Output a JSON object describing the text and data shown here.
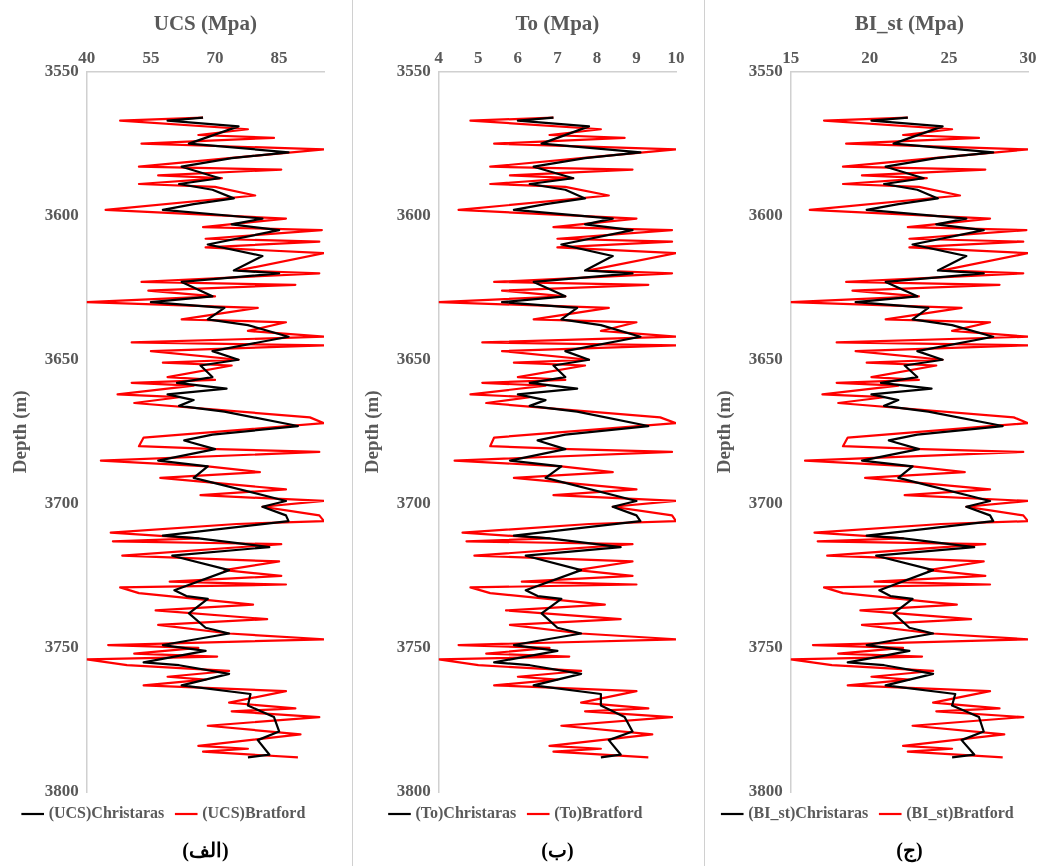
{
  "chart_data": [
    {
      "type": "line",
      "xlabel": "UCS (Mpa)",
      "ylabel": "Depth (m)",
      "xlim": [
        40,
        95.5
      ],
      "xticks": [
        40,
        55,
        70,
        85
      ],
      "ylim": [
        3800,
        3550
      ],
      "yticks": [
        3550,
        3600,
        3650,
        3700,
        3750,
        3800
      ],
      "grid": false,
      "legend": "bottom",
      "marker": "none",
      "line_style": "solid",
      "annotations": [
        "(الف)"
      ],
      "series": [
        {
          "name": "(UCS)Christaras",
          "color": "#000000",
          "x": [
            67.2,
            58.9,
            75.5,
            63.9,
            87.2,
            73.9,
            62.2,
            71.1,
            61.6,
            69.4,
            74.4,
            65.0,
            57.8,
            81.1,
            73.9,
            85.0,
            68.3,
            81.1,
            74.4,
            85.0,
            62.2,
            69.4,
            55.0,
            72.2,
            68.3,
            77.7,
            87.2,
            69.4,
            75.5,
            66.6,
            69.4,
            61.1,
            72.7,
            58.9,
            65.0,
            61.6,
            72.2,
            89.4,
            69.4,
            62.8,
            70.0,
            56.7,
            68.3,
            65.0,
            86.6,
            81.1,
            86.6,
            87.2,
            57.8,
            66.1,
            82.7,
            60.0,
            73.3,
            60.5,
            63.3,
            68.3,
            63.9,
            67.8,
            73.3,
            57.8,
            67.8,
            60.5,
            53.3,
            61.6,
            73.3,
            62.2,
            78.3,
            77.7,
            83.8,
            85.0,
            80.0,
            82.7,
            77.7
          ],
          "values": [
            3566,
            3567,
            3569,
            3575,
            3578,
            3580,
            3583,
            3587,
            3589,
            3591,
            3594,
            3596,
            3598,
            3601,
            3603,
            3605,
            3610,
            3614,
            3619,
            3620,
            3623,
            3628,
            3630,
            3632,
            3636,
            3638,
            3642,
            3647,
            3650,
            3652,
            3656,
            3658,
            3660,
            3662,
            3664,
            3666,
            3668,
            3673,
            3676,
            3678,
            3681,
            3685,
            3687,
            3691,
            3699,
            3701,
            3704,
            3706,
            3711,
            3712,
            3715,
            3718,
            3723,
            3730,
            3732,
            3733,
            3738,
            3743,
            3745,
            3749,
            3751,
            3753,
            3755,
            3756,
            3759,
            3763,
            3766,
            3770,
            3774,
            3779,
            3782,
            3787,
            3788
          ]
        },
        {
          "name": "(UCS)Bratford",
          "color": "#ff0000",
          "x": [
            67.2,
            47.8,
            77.7,
            66.1,
            83.8,
            52.8,
            95.5,
            73.3,
            52.2,
            85.5,
            56.7,
            71.6,
            52.2,
            70.0,
            79.4,
            44.4,
            86.6,
            67.2,
            95.0,
            67.8,
            94.4,
            67.8,
            95.5,
            75.5,
            94.4,
            52.8,
            88.8,
            54.4,
            70.0,
            40,
            80.0,
            62.2,
            86.6,
            77.7,
            95.5,
            50.5,
            95.5,
            55.0,
            75.5,
            57.8,
            73.9,
            58.9,
            70.0,
            50.5,
            65.0,
            47.2,
            61.6,
            51.1,
            92.2,
            95.5,
            53.3,
            52.2,
            70.5,
            94.4,
            43.3,
            68.3,
            80.5,
            57.2,
            86.6,
            66.6,
            95.5,
            81.1,
            94.4,
            95.5,
            75.0,
            45.6,
            66.1,
            46.1,
            85.5,
            48.3,
            85.0,
            72.2,
            85.5,
            59.4,
            86.6,
            47.8,
            52.2,
            78.9,
            56.1,
            82.2,
            56.7,
            73.3,
            95.5,
            45.0,
            66.1,
            51.1,
            70.5,
            40,
            49.4,
            73.3,
            58.9,
            67.8,
            53.3,
            86.6,
            73.3,
            88.8,
            73.9,
            94.4,
            68.3,
            90.0,
            66.1,
            77.7,
            67.2,
            89.4
          ],
          "values": [
            3566,
            3567,
            3570,
            3572,
            3573,
            3575,
            3577,
            3580,
            3583,
            3584,
            3586,
            3587,
            3589,
            3590,
            3593,
            3598,
            3601,
            3604,
            3605,
            3608,
            3609,
            3611,
            3613,
            3619,
            3620,
            3623,
            3624,
            3626,
            3628,
            3630,
            3632,
            3636,
            3637,
            3640,
            3642,
            3644,
            3645,
            3647,
            3650,
            3651,
            3652,
            3656,
            3657,
            3658,
            3659,
            3662,
            3663,
            3665,
            3670,
            3672,
            3677,
            3680,
            3681,
            3682,
            3685,
            3687,
            3689,
            3691,
            3695,
            3697,
            3699,
            3701,
            3704,
            3706,
            3707,
            3710,
            3712,
            3713,
            3714,
            3718,
            3720,
            3723,
            3725,
            3727,
            3728,
            3729,
            3731,
            3735,
            3737,
            3740,
            3742,
            3745,
            3747,
            3749,
            3750,
            3752,
            3753,
            3754,
            3756,
            3758,
            3760,
            3761,
            3763,
            3765,
            3769,
            3771,
            3772,
            3774,
            3777,
            3780,
            3784,
            3785,
            3786,
            3788
          ]
        }
      ]
    },
    {
      "type": "line",
      "xlabel": "To (Mpa)",
      "ylabel": "Depth (m)",
      "xlim": [
        4,
        10
      ],
      "xticks": [
        4,
        5,
        6,
        7,
        8,
        9,
        10
      ],
      "ylim": [
        3800,
        3550
      ],
      "yticks": [
        3550,
        3600,
        3650,
        3700,
        3750,
        3800
      ],
      "grid": false,
      "legend": "bottom",
      "marker": "none",
      "line_style": "solid",
      "annotations": [
        "(ب)"
      ],
      "series": [
        {
          "name": "(To)Christaras",
          "color": "#000000",
          "x": [
            6.9,
            6.0,
            7.8,
            6.6,
            9.1,
            7.7,
            6.4,
            7.4,
            6.3,
            7.2,
            7.7,
            6.7,
            5.9,
            8.4,
            7.7,
            8.9,
            7.1,
            8.4,
            7.7,
            8.9,
            6.4,
            7.2,
            5.6,
            7.5,
            7.1,
            8.1,
            9.1,
            7.2,
            7.8,
            6.9,
            7.2,
            6.3,
            7.5,
            6.0,
            6.7,
            6.3,
            7.5,
            9.3,
            7.2,
            6.5,
            7.2,
            5.8,
            7.1,
            6.7,
            9.0,
            8.4,
            9.0,
            9.1,
            5.9,
            6.8,
            8.6,
            6.2,
            7.6,
            6.2,
            6.5,
            7.1,
            6.6,
            7.0,
            7.6,
            5.9,
            7.0,
            6.2,
            5.4,
            6.3,
            7.6,
            6.4,
            8.1,
            8.1,
            8.7,
            8.9,
            8.3,
            8.6,
            8.1
          ],
          "values": [
            3566,
            3567,
            3569,
            3575,
            3578,
            3580,
            3583,
            3587,
            3589,
            3591,
            3594,
            3596,
            3598,
            3601,
            3603,
            3605,
            3610,
            3614,
            3619,
            3620,
            3623,
            3628,
            3630,
            3632,
            3636,
            3638,
            3642,
            3647,
            3650,
            3652,
            3656,
            3658,
            3660,
            3662,
            3664,
            3666,
            3668,
            3673,
            3676,
            3678,
            3681,
            3685,
            3687,
            3691,
            3699,
            3701,
            3704,
            3706,
            3711,
            3712,
            3715,
            3718,
            3723,
            3730,
            3732,
            3733,
            3738,
            3743,
            3745,
            3749,
            3751,
            3753,
            3755,
            3756,
            3759,
            3763,
            3766,
            3770,
            3774,
            3779,
            3782,
            3787,
            3788
          ]
        },
        {
          "name": "(To)Bratford",
          "color": "#ff0000",
          "x": [
            6.9,
            4.8,
            8.1,
            6.8,
            8.7,
            5.4,
            10.0,
            7.6,
            5.3,
            8.9,
            5.8,
            7.4,
            5.3,
            7.2,
            8.3,
            4.5,
            9.0,
            6.9,
            9.9,
            7.0,
            9.9,
            7.0,
            10.0,
            7.8,
            9.9,
            5.4,
            9.3,
            5.6,
            7.2,
            4.0,
            8.3,
            6.4,
            9.0,
            8.1,
            10.0,
            5.1,
            10.0,
            5.6,
            7.8,
            5.9,
            7.7,
            6.0,
            7.2,
            5.1,
            6.7,
            4.8,
            6.3,
            5.2,
            9.6,
            10.0,
            5.4,
            5.3,
            7.3,
            9.9,
            4.4,
            7.1,
            8.4,
            5.9,
            9.0,
            6.9,
            10.0,
            8.4,
            9.9,
            10.0,
            7.8,
            4.6,
            6.8,
            4.7,
            8.9,
            4.9,
            8.9,
            7.5,
            8.9,
            6.1,
            9.0,
            4.8,
            5.3,
            8.2,
            5.7,
            8.6,
            5.8,
            7.6,
            10.0,
            4.5,
            6.8,
            5.2,
            7.3,
            4.0,
            5.0,
            7.6,
            6.0,
            7.0,
            5.4,
            9.0,
            7.6,
            9.3,
            7.7,
            9.9,
            7.1,
            9.4,
            6.8,
            8.1,
            6.9,
            9.3
          ],
          "values": [
            3566,
            3567,
            3570,
            3572,
            3573,
            3575,
            3577,
            3580,
            3583,
            3584,
            3586,
            3587,
            3589,
            3590,
            3593,
            3598,
            3601,
            3604,
            3605,
            3608,
            3609,
            3611,
            3613,
            3619,
            3620,
            3623,
            3624,
            3626,
            3628,
            3630,
            3632,
            3636,
            3637,
            3640,
            3642,
            3644,
            3645,
            3647,
            3650,
            3651,
            3652,
            3656,
            3657,
            3658,
            3659,
            3662,
            3663,
            3665,
            3670,
            3672,
            3677,
            3680,
            3681,
            3682,
            3685,
            3687,
            3689,
            3691,
            3695,
            3697,
            3699,
            3701,
            3704,
            3706,
            3707,
            3710,
            3712,
            3713,
            3714,
            3718,
            3720,
            3723,
            3725,
            3727,
            3728,
            3729,
            3731,
            3735,
            3737,
            3740,
            3742,
            3745,
            3747,
            3749,
            3750,
            3752,
            3753,
            3754,
            3756,
            3758,
            3760,
            3761,
            3763,
            3765,
            3769,
            3771,
            3772,
            3774,
            3777,
            3780,
            3784,
            3785,
            3786,
            3788
          ]
        }
      ]
    },
    {
      "type": "line",
      "xlabel": "BI_st (Mpa)",
      "ylabel": "Depth (m)",
      "xlim": [
        15,
        30
      ],
      "xticks": [
        15,
        20,
        25,
        30
      ],
      "ylim": [
        3800,
        3550
      ],
      "yticks": [
        3550,
        3600,
        3650,
        3700,
        3750,
        3800
      ],
      "grid": false,
      "legend": "bottom",
      "marker": "none",
      "line_style": "solid",
      "annotations": [
        "(ج)"
      ],
      "series": [
        {
          "name": "(BI_st)Christaras",
          "color": "#000000",
          "x": [
            22.4,
            20.1,
            24.6,
            21.5,
            27.8,
            24.2,
            21.0,
            23.4,
            20.9,
            23.0,
            24.3,
            21.8,
            19.8,
            26.1,
            24.2,
            27.2,
            22.7,
            26.1,
            24.3,
            27.2,
            21.0,
            23.0,
            19.1,
            23.7,
            22.7,
            25.2,
            27.8,
            23.0,
            24.6,
            22.2,
            23.0,
            20.7,
            23.9,
            20.1,
            21.8,
            20.9,
            23.7,
            28.4,
            23.0,
            21.2,
            23.1,
            19.5,
            22.7,
            21.8,
            27.6,
            26.1,
            27.6,
            27.8,
            19.8,
            22.1,
            26.6,
            20.4,
            24.0,
            20.6,
            21.3,
            22.7,
            21.5,
            22.5,
            24.0,
            19.8,
            22.5,
            20.6,
            18.6,
            20.9,
            24.0,
            21.0,
            25.4,
            25.2,
            26.9,
            27.2,
            25.8,
            26.6,
            25.2
          ],
          "values": [
            3566,
            3567,
            3569,
            3575,
            3578,
            3580,
            3583,
            3587,
            3589,
            3591,
            3594,
            3596,
            3598,
            3601,
            3603,
            3605,
            3610,
            3614,
            3619,
            3620,
            3623,
            3628,
            3630,
            3632,
            3636,
            3638,
            3642,
            3647,
            3650,
            3652,
            3656,
            3658,
            3660,
            3662,
            3664,
            3666,
            3668,
            3673,
            3676,
            3678,
            3681,
            3685,
            3687,
            3691,
            3699,
            3701,
            3704,
            3706,
            3711,
            3712,
            3715,
            3718,
            3723,
            3730,
            3732,
            3733,
            3738,
            3743,
            3745,
            3749,
            3751,
            3753,
            3755,
            3756,
            3759,
            3763,
            3766,
            3770,
            3774,
            3779,
            3782,
            3787,
            3788
          ]
        },
        {
          "name": "(BI_st)Bratford",
          "color": "#ff0000",
          "x": [
            22.4,
            17.1,
            25.2,
            22.1,
            26.9,
            18.5,
            30.0,
            24.0,
            18.3,
            27.3,
            19.5,
            23.6,
            18.3,
            23.1,
            25.7,
            16.2,
            27.6,
            22.4,
            29.9,
            22.5,
            29.7,
            22.5,
            30.0,
            24.6,
            29.7,
            18.5,
            28.2,
            18.9,
            23.1,
            15.0,
            25.8,
            21.0,
            27.6,
            25.2,
            30.0,
            17.9,
            30.0,
            19.1,
            24.6,
            19.8,
            24.2,
            20.1,
            23.1,
            17.9,
            21.8,
            17.0,
            20.9,
            18.0,
            29.1,
            30.0,
            18.6,
            18.3,
            23.3,
            29.7,
            15.9,
            22.7,
            26.0,
            19.7,
            27.6,
            22.2,
            30.0,
            26.1,
            29.7,
            30.0,
            24.5,
            16.5,
            22.1,
            16.7,
            27.3,
            17.3,
            27.2,
            23.7,
            27.3,
            20.3,
            27.6,
            17.1,
            18.3,
            25.5,
            19.4,
            26.4,
            19.5,
            24.0,
            30.0,
            16.4,
            22.1,
            18.0,
            23.3,
            15.0,
            17.6,
            24.0,
            20.1,
            22.5,
            18.6,
            27.6,
            24.0,
            28.2,
            24.2,
            29.7,
            22.7,
            28.5,
            22.1,
            25.2,
            22.4,
            28.4
          ],
          "values": [
            3566,
            3567,
            3570,
            3572,
            3573,
            3575,
            3577,
            3580,
            3583,
            3584,
            3586,
            3587,
            3589,
            3590,
            3593,
            3598,
            3601,
            3604,
            3605,
            3608,
            3609,
            3611,
            3613,
            3619,
            3620,
            3623,
            3624,
            3626,
            3628,
            3630,
            3632,
            3636,
            3637,
            3640,
            3642,
            3644,
            3645,
            3647,
            3650,
            3651,
            3652,
            3656,
            3657,
            3658,
            3659,
            3662,
            3663,
            3665,
            3670,
            3672,
            3677,
            3680,
            3681,
            3682,
            3685,
            3687,
            3689,
            3691,
            3695,
            3697,
            3699,
            3701,
            3704,
            3706,
            3707,
            3710,
            3712,
            3713,
            3714,
            3718,
            3720,
            3723,
            3725,
            3727,
            3728,
            3729,
            3731,
            3735,
            3737,
            3740,
            3742,
            3745,
            3747,
            3749,
            3750,
            3752,
            3753,
            3754,
            3756,
            3758,
            3760,
            3761,
            3763,
            3765,
            3769,
            3771,
            3772,
            3774,
            3777,
            3780,
            3784,
            3785,
            3786,
            3788
          ]
        }
      ]
    }
  ]
}
